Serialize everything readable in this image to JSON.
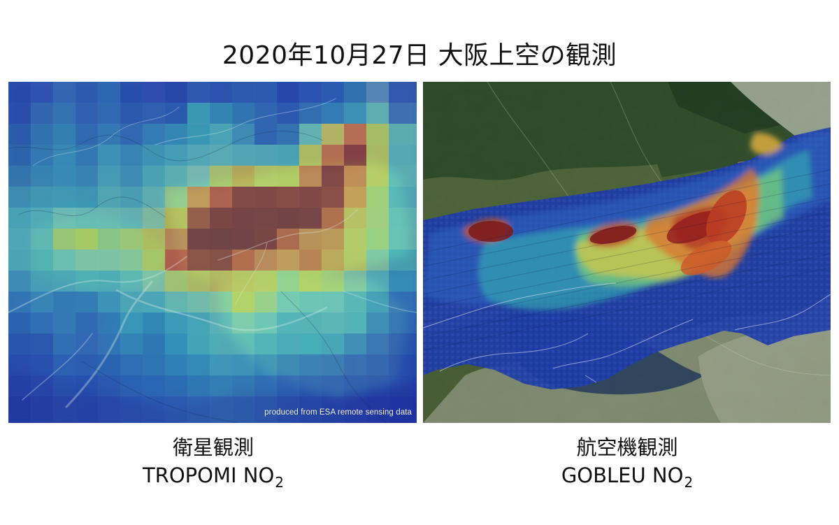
{
  "title": "2020年10月27日 大阪上空の観測",
  "left_panel": {
    "map_name": "satellite-no2-map",
    "caption_line1": "衛星観測",
    "caption_line2_main": "TROPOMI NO",
    "caption_line2_sub": "2",
    "credit": "produced from ESA remote sensing data"
  },
  "right_panel": {
    "map_name": "aircraft-no2-map",
    "caption_line1": "航空機観測",
    "caption_line2_main": "GOBLEU NO",
    "caption_line2_sub": "2"
  },
  "colors": {
    "low": "#1537b8",
    "mid_low": "#2aa9bb",
    "mid": "#d6d94a",
    "high": "#e25a22",
    "very_high": "#7b1616",
    "water": "#293b74",
    "land_dark": "#38512e",
    "land_light": "#9fa58c"
  }
}
